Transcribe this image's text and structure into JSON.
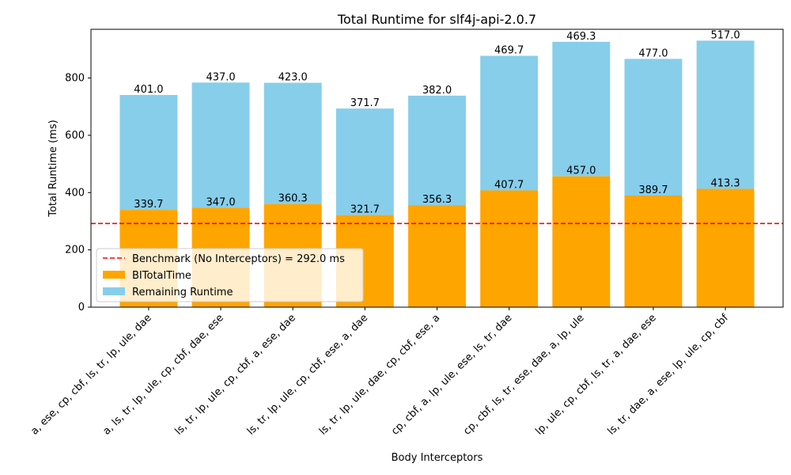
{
  "chart_data": {
    "type": "bar",
    "stacked": true,
    "title": "Total Runtime for slf4j-api-2.0.7",
    "xlabel": "Body Interceptors",
    "ylabel": "Total Runtime (ms)",
    "ylim": [
      0,
      970
    ],
    "yticks": [
      0,
      200,
      400,
      600,
      800
    ],
    "grid": false,
    "legend_position": "lower-left",
    "categories": [
      "a, ese, cp, cbf, ls, tr, lp, ule, dae",
      "a, ls, tr, lp, ule, cp, cbf, dae, ese",
      "ls, tr, lp, ule, cp, cbf, a, ese, dae",
      "ls, tr, lp, ule, cp, cbf, ese, a, dae",
      "ls, tr, lp, ule, dae, cp, cbf, ese, a",
      "cp, cbf, a, lp, ule, ese, ls, tr, dae",
      "cp, cbf, ls, tr, ese, dae, a, lp, ule",
      "lp, ule, cp, cbf, ls, tr, a, dae, ese",
      "ls, tr, dae, a, ese, lp, ule, cp, cbf"
    ],
    "series": [
      {
        "name": "BITotalTime",
        "color": "#ffa500",
        "values": [
          339.7,
          347.0,
          360.3,
          321.7,
          356.3,
          407.7,
          457.0,
          389.7,
          413.3
        ],
        "labels": [
          "339.7",
          "347.0",
          "360.3",
          "321.7",
          "356.3",
          "407.7",
          "457.0",
          "389.7",
          "413.3"
        ]
      },
      {
        "name": "Remaining Runtime",
        "color": "#87ceeb",
        "values": [
          401.0,
          437.0,
          423.0,
          371.7,
          382.0,
          469.7,
          469.3,
          477.0,
          517.0
        ],
        "labels": [
          "401.0",
          "437.0",
          "423.0",
          "371.7",
          "382.0",
          "469.7",
          "469.3",
          "477.0",
          "517.0"
        ]
      }
    ],
    "benchmark": {
      "value": 292.0,
      "label": "Benchmark (No Interceptors) = 292.0 ms",
      "color": "#ff0000"
    }
  }
}
